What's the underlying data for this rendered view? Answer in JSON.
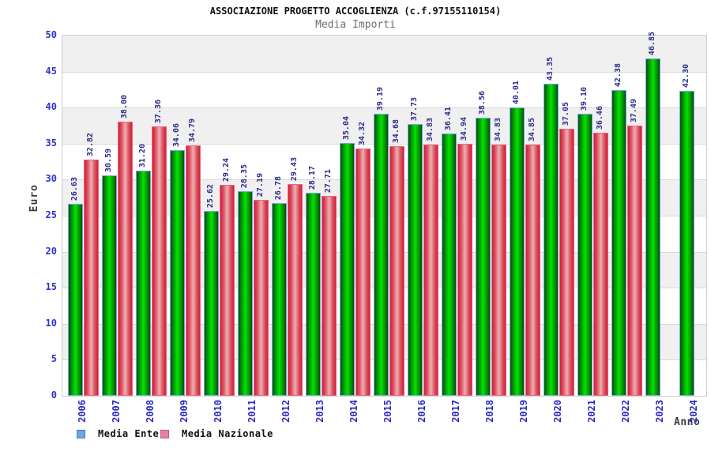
{
  "header": {
    "title": "ASSOCIAZIONE PROGETTO ACCOGLIENZA (c.f.97155110154)",
    "subtitle": "Media Importi"
  },
  "axes": {
    "y_label": "Euro",
    "x_label": "Anno",
    "y_ticks": [
      0,
      5,
      10,
      15,
      20,
      25,
      30,
      35,
      40,
      45,
      50
    ]
  },
  "legend": {
    "items": [
      {
        "label": "Media Ente",
        "color": "#6fa8dc"
      },
      {
        "label": "Media Nazionale",
        "color": "#e87fa8"
      }
    ]
  },
  "colors": {
    "ente_bar_gradient_edge": "#045204",
    "ente_bar_gradient_center": "#00e400",
    "ente_bar_border": "#73a9e6",
    "nazionale_bar_gradient_edge": "#cf2038",
    "nazionale_bar_gradient_center": "#eeafb1",
    "nazionale_bar_border": "#f4627f",
    "band_gray": "#f0f0f0",
    "band_white": "#ffffff",
    "gridline": "#d9d9d9",
    "tick_text": "#3030cf",
    "value_text": "#2b2b8a",
    "title_text": "#111111",
    "subtitle_text": "#6e6e6e"
  },
  "chart_data": {
    "type": "bar",
    "title": "ASSOCIAZIONE PROGETTO ACCOGLIENZA (c.f.97155110154)",
    "subtitle": "Media Importi",
    "xlabel": "Anno",
    "ylabel": "Euro",
    "ylim": [
      0,
      50
    ],
    "y_tick_step": 5,
    "grid": true,
    "legend_position": "bottom-left",
    "categories": [
      "2006",
      "2007",
      "2008",
      "2009",
      "2010",
      "2011",
      "2012",
      "2013",
      "2014",
      "2015",
      "2016",
      "2017",
      "2018",
      "2019",
      "2020",
      "2021",
      "2022",
      "2023",
      "2024"
    ],
    "series": [
      {
        "name": "Media Ente",
        "values": [
          26.63,
          30.59,
          31.2,
          34.06,
          25.62,
          28.35,
          26.78,
          28.17,
          35.04,
          39.19,
          37.73,
          36.41,
          38.56,
          40.01,
          43.35,
          39.1,
          42.38,
          46.85,
          42.3
        ]
      },
      {
        "name": "Media Nazionale",
        "values": [
          32.82,
          38.0,
          37.36,
          34.79,
          29.24,
          27.19,
          29.43,
          27.71,
          34.32,
          34.68,
          34.83,
          34.94,
          34.83,
          34.85,
          37.05,
          36.46,
          37.49,
          null,
          null
        ]
      }
    ],
    "value_labels": {
      "Media Ente": [
        "26.63",
        "30.59",
        "31.20",
        "34.06",
        "25.62",
        "28.35",
        "26.78",
        "28.17",
        "35.04",
        "39.19",
        "37.73",
        "36.41",
        "38.56",
        "40.01",
        "43.35",
        "39.10",
        "42.38",
        "46.85",
        "42.30"
      ],
      "Media Nazionale": [
        "32.82",
        "38.00",
        "37.36",
        "34.79",
        "29.24",
        "27.19",
        "29.43",
        "27.71",
        "34.32",
        "34.68",
        "34.83",
        "34.94",
        "34.83",
        "34.85",
        "37.05",
        "36.46",
        "37.49",
        null,
        null
      ]
    }
  }
}
